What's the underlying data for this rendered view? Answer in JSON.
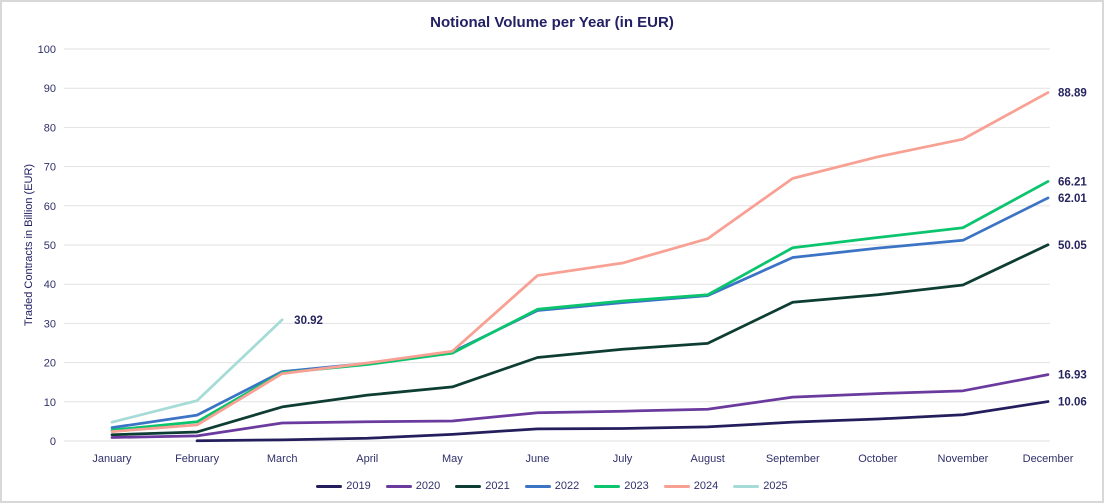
{
  "title": "Notional Volume per Year (in EUR)",
  "y_axis_label": "Traded Contracts in Billion (EUR)",
  "chart_data": {
    "type": "line",
    "title": "Notional Volume per Year (in EUR)",
    "xlabel": "",
    "ylabel": "Traded Contracts in Billion (EUR)",
    "categories": [
      "January",
      "February",
      "March",
      "April",
      "May",
      "June",
      "July",
      "August",
      "September",
      "October",
      "November",
      "December"
    ],
    "ylim": [
      0,
      100
    ],
    "ytick_step": 10,
    "grid": "horizontal",
    "legend_position": "bottom",
    "series": [
      {
        "name": "2019",
        "color": "#241f5c",
        "end_label": "10.06",
        "values": [
          null,
          0.05,
          0.3,
          0.7,
          1.7,
          3.1,
          3.2,
          3.6,
          4.8,
          5.6,
          6.7,
          10.06
        ]
      },
      {
        "name": "2020",
        "color": "#6b3a9e",
        "end_label": "16.93",
        "values": [
          0.9,
          1.3,
          4.6,
          4.9,
          5.1,
          7.2,
          7.6,
          8.1,
          11.2,
          12.1,
          12.8,
          16.93
        ]
      },
      {
        "name": "2021",
        "color": "#0e3d33",
        "end_label": "50.05",
        "values": [
          1.6,
          2.3,
          8.7,
          11.7,
          13.8,
          21.3,
          23.4,
          24.9,
          35.4,
          37.3,
          39.8,
          50.05
        ]
      },
      {
        "name": "2022",
        "color": "#3c74c5",
        "end_label": "62.01",
        "values": [
          3.4,
          6.6,
          17.7,
          19.8,
          22.7,
          33.3,
          35.3,
          37.1,
          46.8,
          49.2,
          51.2,
          62.01
        ]
      },
      {
        "name": "2023",
        "color": "#0bc46e",
        "end_label": "66.21",
        "values": [
          2.8,
          4.9,
          17.4,
          19.5,
          22.4,
          33.6,
          35.7,
          37.3,
          49.3,
          51.9,
          54.4,
          66.21
        ]
      },
      {
        "name": "2024",
        "color": "#f9a094",
        "end_label": "88.89",
        "values": [
          2.4,
          4.1,
          17.2,
          19.9,
          22.9,
          42.2,
          45.4,
          51.6,
          67.0,
          72.5,
          77.0,
          88.89
        ]
      },
      {
        "name": "2025",
        "color": "#a6dbd7",
        "end_label": "30.92",
        "values": [
          4.8,
          10.3,
          30.92,
          null,
          null,
          null,
          null,
          null,
          null,
          null,
          null,
          null
        ]
      }
    ]
  }
}
